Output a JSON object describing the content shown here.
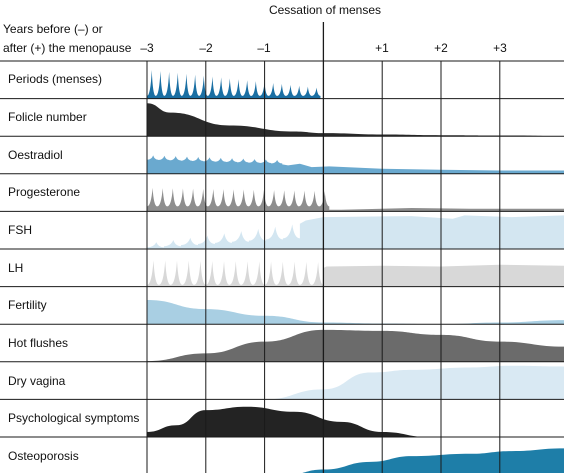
{
  "header": {
    "cessation_label": "Cessation of menses",
    "axis_label_line1": "Years before (–) or",
    "axis_label_line2": "after (+) the menopause",
    "ticks": [
      "–3",
      "–2",
      "–1",
      "+1",
      "+2",
      "+3"
    ]
  },
  "rows": [
    {
      "label": "Periods (menses)",
      "color": "#1a6fa3"
    },
    {
      "label": "Folicle number",
      "color": "#2a2a2a"
    },
    {
      "label": "Oestradiol",
      "color": "#6aa9cf"
    },
    {
      "label": "Progesterone",
      "color": "#8e8e8e"
    },
    {
      "label": "FSH",
      "color": "#d3e6f1"
    },
    {
      "label": "LH",
      "color": "#d8d8d8"
    },
    {
      "label": "Fertility",
      "color": "#a9cfe3"
    },
    {
      "label": "Hot flushes",
      "color": "#6b6b6b"
    },
    {
      "label": "Dry vagina",
      "color": "#d9e9f3"
    },
    {
      "label": "Psychological symptoms",
      "color": "#232323"
    },
    {
      "label": "Osteoporosis",
      "color": "#1e7ea8"
    }
  ]
}
